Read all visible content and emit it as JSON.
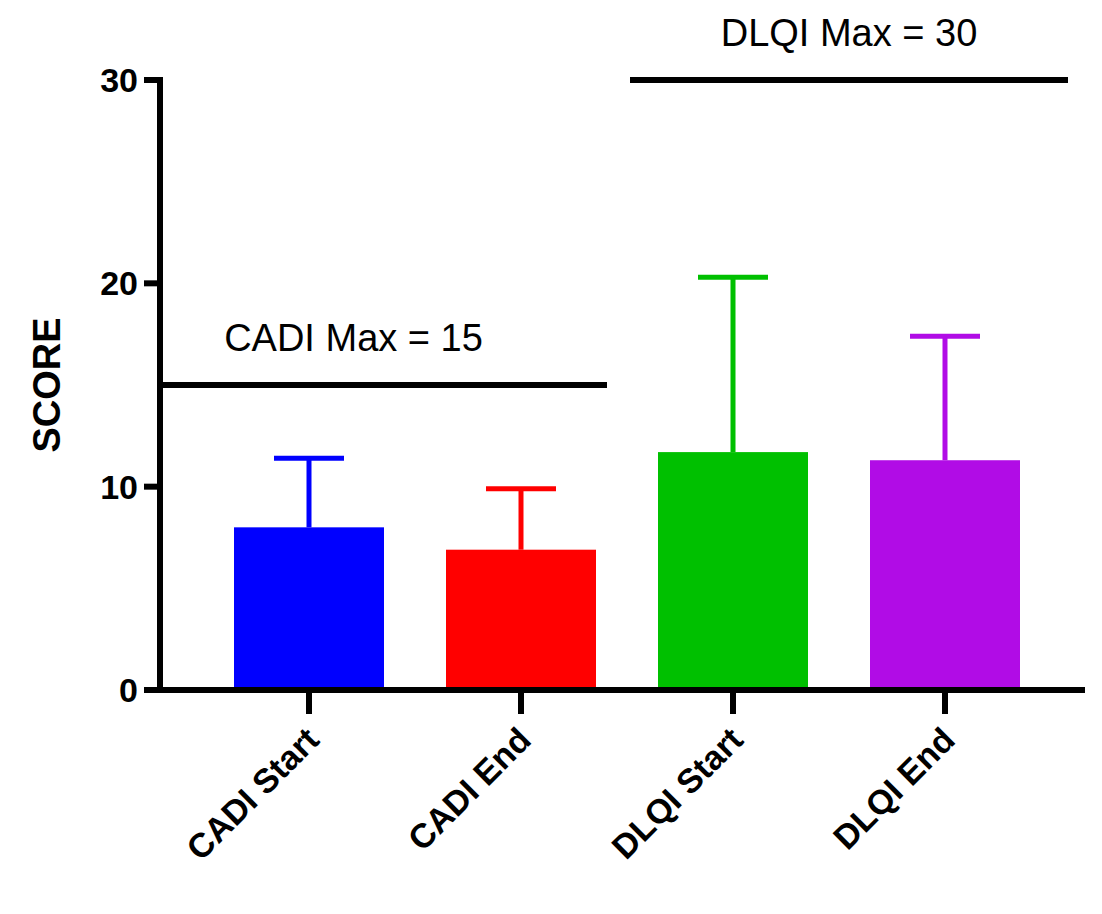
{
  "chart_data": {
    "type": "bar",
    "y_label": "SCORE",
    "categories": [
      "CADI Start",
      "CADI End",
      "DLQI Start",
      "DLQI End"
    ],
    "values": [
      8.0,
      6.9,
      11.7,
      11.3
    ],
    "errors": [
      3.4,
      3.0,
      8.6,
      6.1
    ],
    "colors": [
      "#0000ff",
      "#ff0000",
      "#00c000",
      "#b10ce6"
    ],
    "ylim": [
      0,
      30
    ],
    "yticks": [
      0,
      10,
      20,
      30
    ],
    "grid": false,
    "annotations": [
      {
        "text": "CADI Max = 15",
        "value": 15,
        "span": [
          "CADI Start",
          "CADI End"
        ]
      },
      {
        "text": "DLQI Max = 30",
        "value": 30,
        "span": [
          "DLQI Start",
          "DLQI End"
        ]
      }
    ]
  }
}
